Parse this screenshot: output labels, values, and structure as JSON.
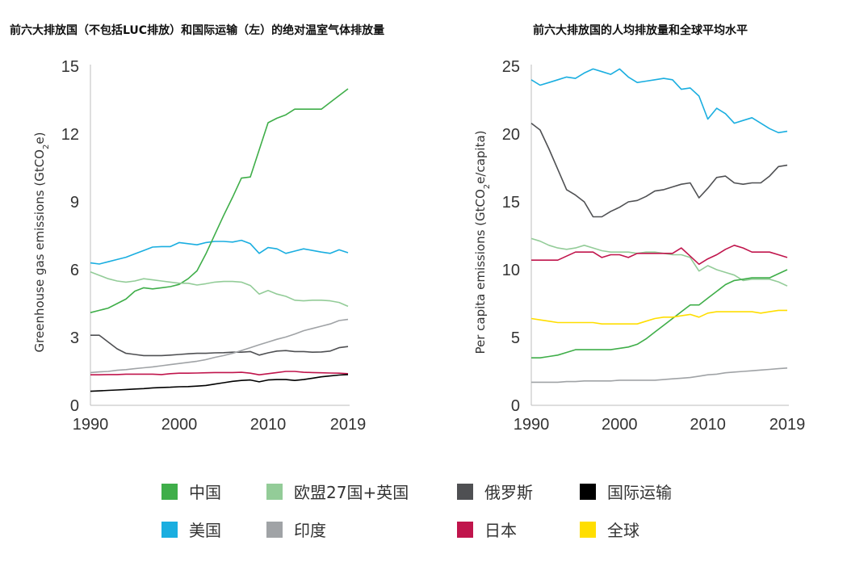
{
  "chart_data": [
    {
      "type": "line",
      "title": "前六大排放国（不包括LUC排放）和国际运输（左）的绝对温室气体排放量",
      "xlabel": "",
      "ylabel": "Greenhouse gas emissions (GtCO2e)",
      "ylim": [
        0,
        15
      ],
      "yticks": [
        "0",
        "3",
        "6",
        "9",
        "12",
        "15"
      ],
      "xlim": [
        1990,
        2019
      ],
      "xticks": [
        "1990",
        "2000",
        "2010",
        "2019"
      ],
      "series": [
        {
          "name": "美国",
          "color": "#1aaee0",
          "x": [
            1990,
            1991,
            1992,
            1993,
            1994,
            1995,
            1996,
            1997,
            1998,
            1999,
            2000,
            2001,
            2002,
            2003,
            2004,
            2005,
            2006,
            2007,
            2008,
            2009,
            2010,
            2011,
            2012,
            2013,
            2014,
            2015,
            2016,
            2017,
            2018,
            2019
          ],
          "y": [
            6.3,
            6.25,
            6.35,
            6.45,
            6.55,
            6.7,
            6.85,
            7.0,
            7.02,
            7.02,
            7.2,
            7.15,
            7.1,
            7.2,
            7.25,
            7.25,
            7.22,
            7.3,
            7.15,
            6.72,
            6.98,
            6.92,
            6.72,
            6.82,
            6.92,
            6.85,
            6.78,
            6.72,
            6.88,
            6.75
          ]
        },
        {
          "name": "中国",
          "color": "#3fae49",
          "x": [
            1990,
            1991,
            1992,
            1993,
            1994,
            1995,
            1996,
            1997,
            1998,
            1999,
            2000,
            2001,
            2002,
            2003,
            2004,
            2005,
            2006,
            2007,
            2008,
            2009,
            2010,
            2011,
            2012,
            2013,
            2014,
            2015,
            2016,
            2017,
            2018,
            2019
          ],
          "y": [
            4.1,
            4.2,
            4.3,
            4.5,
            4.7,
            5.05,
            5.2,
            5.15,
            5.2,
            5.25,
            5.35,
            5.6,
            5.95,
            6.7,
            7.55,
            8.4,
            9.2,
            10.05,
            10.1,
            11.3,
            12.5,
            12.7,
            12.85,
            13.1,
            13.1,
            13.1,
            13.1,
            13.4,
            13.7,
            14.0
          ]
        },
        {
          "name": "欧盟27国+英国",
          "color": "#93cc98",
          "x": [
            1990,
            1991,
            1992,
            1993,
            1994,
            1995,
            1996,
            1997,
            1998,
            1999,
            2000,
            2001,
            2002,
            2003,
            2004,
            2005,
            2006,
            2007,
            2008,
            2009,
            2010,
            2011,
            2012,
            2013,
            2014,
            2015,
            2016,
            2017,
            2018,
            2019
          ],
          "y": [
            5.9,
            5.75,
            5.6,
            5.5,
            5.45,
            5.5,
            5.6,
            5.55,
            5.5,
            5.45,
            5.4,
            5.4,
            5.32,
            5.38,
            5.45,
            5.48,
            5.48,
            5.45,
            5.3,
            4.92,
            5.08,
            4.92,
            4.82,
            4.65,
            4.62,
            4.65,
            4.65,
            4.62,
            4.55,
            4.38
          ]
        },
        {
          "name": "俄罗斯",
          "color": "#4f5053",
          "x": [
            1990,
            1991,
            1992,
            1993,
            1994,
            1995,
            1996,
            1997,
            1998,
            1999,
            2000,
            2001,
            2002,
            2003,
            2004,
            2005,
            2006,
            2007,
            2008,
            2009,
            2010,
            2011,
            2012,
            2013,
            2014,
            2015,
            2016,
            2017,
            2018,
            2019
          ],
          "y": [
            3.1,
            3.1,
            2.8,
            2.5,
            2.3,
            2.25,
            2.2,
            2.2,
            2.2,
            2.22,
            2.25,
            2.28,
            2.3,
            2.3,
            2.32,
            2.33,
            2.35,
            2.35,
            2.38,
            2.22,
            2.32,
            2.4,
            2.42,
            2.38,
            2.38,
            2.35,
            2.36,
            2.4,
            2.55,
            2.6
          ]
        },
        {
          "name": "印度",
          "color": "#a0a3a6",
          "x": [
            1990,
            1991,
            1992,
            1993,
            1994,
            1995,
            1996,
            1997,
            1998,
            1999,
            2000,
            2001,
            2002,
            2003,
            2004,
            2005,
            2006,
            2007,
            2008,
            2009,
            2010,
            2011,
            2012,
            2013,
            2014,
            2015,
            2016,
            2017,
            2018,
            2019
          ],
          "y": [
            1.45,
            1.48,
            1.5,
            1.55,
            1.58,
            1.62,
            1.66,
            1.7,
            1.75,
            1.8,
            1.85,
            1.9,
            1.95,
            2.02,
            2.12,
            2.2,
            2.3,
            2.42,
            2.55,
            2.68,
            2.8,
            2.92,
            3.02,
            3.15,
            3.3,
            3.4,
            3.5,
            3.6,
            3.75,
            3.8
          ]
        },
        {
          "name": "日本",
          "color": "#c0154c",
          "x": [
            1990,
            1991,
            1992,
            1993,
            1994,
            1995,
            1996,
            1997,
            1998,
            1999,
            2000,
            2001,
            2002,
            2003,
            2004,
            2005,
            2006,
            2007,
            2008,
            2009,
            2010,
            2011,
            2012,
            2013,
            2014,
            2015,
            2016,
            2017,
            2018,
            2019
          ],
          "y": [
            1.35,
            1.35,
            1.36,
            1.36,
            1.38,
            1.38,
            1.38,
            1.38,
            1.36,
            1.4,
            1.42,
            1.42,
            1.43,
            1.44,
            1.45,
            1.45,
            1.45,
            1.46,
            1.42,
            1.35,
            1.4,
            1.45,
            1.5,
            1.5,
            1.46,
            1.45,
            1.44,
            1.43,
            1.42,
            1.4
          ]
        },
        {
          "name": "国际运输",
          "color": "#000000",
          "x": [
            1990,
            1991,
            1992,
            1993,
            1994,
            1995,
            1996,
            1997,
            1998,
            1999,
            2000,
            2001,
            2002,
            2003,
            2004,
            2005,
            2006,
            2007,
            2008,
            2009,
            2010,
            2011,
            2012,
            2013,
            2014,
            2015,
            2016,
            2017,
            2018,
            2019
          ],
          "y": [
            0.62,
            0.64,
            0.66,
            0.68,
            0.7,
            0.72,
            0.74,
            0.77,
            0.79,
            0.8,
            0.82,
            0.83,
            0.85,
            0.88,
            0.94,
            1.0,
            1.06,
            1.1,
            1.12,
            1.04,
            1.12,
            1.14,
            1.14,
            1.1,
            1.14,
            1.2,
            1.26,
            1.3,
            1.34,
            1.36
          ]
        }
      ]
    },
    {
      "type": "line",
      "title": "前六大排放国的人均排放量和全球平均水平",
      "xlabel": "",
      "ylabel": "Per capita emissions (GtCO2e/capita)",
      "ylim": [
        0,
        25
      ],
      "yticks": [
        "0",
        "5",
        "10",
        "15",
        "20",
        "25"
      ],
      "xlim": [
        1990,
        2019
      ],
      "xticks": [
        "1990",
        "2000",
        "2010",
        "2019"
      ],
      "series": [
        {
          "name": "美国",
          "color": "#1aaee0",
          "x": [
            1990,
            1991,
            1992,
            1993,
            1994,
            1995,
            1996,
            1997,
            1998,
            1999,
            2000,
            2001,
            2002,
            2003,
            2004,
            2005,
            2006,
            2007,
            2008,
            2009,
            2010,
            2011,
            2012,
            2013,
            2014,
            2015,
            2016,
            2017,
            2018,
            2019
          ],
          "y": [
            24.0,
            23.6,
            23.8,
            24.0,
            24.2,
            24.1,
            24.5,
            24.8,
            24.6,
            24.4,
            24.8,
            24.2,
            23.8,
            23.9,
            24.0,
            24.1,
            24.0,
            23.3,
            23.4,
            22.8,
            21.1,
            21.9,
            21.5,
            20.8,
            21.0,
            21.2,
            20.8,
            20.4,
            20.1,
            20.2
          ]
        },
        {
          "name": "俄罗斯",
          "color": "#4f5053",
          "x": [
            1990,
            1991,
            1992,
            1993,
            1994,
            1995,
            1996,
            1997,
            1998,
            1999,
            2000,
            2001,
            2002,
            2003,
            2004,
            2005,
            2006,
            2007,
            2008,
            2009,
            2010,
            2011,
            2012,
            2013,
            2014,
            2015,
            2016,
            2017,
            2018,
            2019
          ],
          "y": [
            20.8,
            20.3,
            18.9,
            17.4,
            15.9,
            15.5,
            15.0,
            13.9,
            13.9,
            14.3,
            14.6,
            15.0,
            15.1,
            15.4,
            15.8,
            15.9,
            16.1,
            16.3,
            16.4,
            15.3,
            16.0,
            16.8,
            16.9,
            16.4,
            16.3,
            16.4,
            16.4,
            16.9,
            17.6,
            17.7
          ]
        },
        {
          "name": "欧盟27国+英国",
          "color": "#93cc98",
          "x": [
            1990,
            1991,
            1992,
            1993,
            1994,
            1995,
            1996,
            1997,
            1998,
            1999,
            2000,
            2001,
            2002,
            2003,
            2004,
            2005,
            2006,
            2007,
            2008,
            2009,
            2010,
            2011,
            2012,
            2013,
            2014,
            2015,
            2016,
            2017,
            2018,
            2019
          ],
          "y": [
            12.3,
            12.1,
            11.8,
            11.6,
            11.5,
            11.6,
            11.8,
            11.6,
            11.4,
            11.3,
            11.3,
            11.3,
            11.2,
            11.3,
            11.3,
            11.2,
            11.1,
            11.1,
            10.9,
            9.9,
            10.3,
            10.0,
            9.8,
            9.6,
            9.2,
            9.3,
            9.3,
            9.3,
            9.1,
            8.8
          ]
        },
        {
          "name": "日本",
          "color": "#c0154c",
          "x": [
            1990,
            1991,
            1992,
            1993,
            1994,
            1995,
            1996,
            1997,
            1998,
            1999,
            2000,
            2001,
            2002,
            2003,
            2004,
            2005,
            2006,
            2007,
            2008,
            2009,
            2010,
            2011,
            2012,
            2013,
            2014,
            2015,
            2016,
            2017,
            2018,
            2019
          ],
          "y": [
            10.7,
            10.7,
            10.7,
            10.7,
            11.0,
            11.3,
            11.3,
            11.3,
            10.9,
            11.1,
            11.1,
            10.9,
            11.2,
            11.2,
            11.2,
            11.2,
            11.2,
            11.6,
            11.0,
            10.4,
            10.8,
            11.1,
            11.5,
            11.8,
            11.6,
            11.3,
            11.3,
            11.3,
            11.1,
            10.9
          ]
        },
        {
          "name": "中国",
          "color": "#3fae49",
          "x": [
            1990,
            1991,
            1992,
            1993,
            1994,
            1995,
            1996,
            1997,
            1998,
            1999,
            2000,
            2001,
            2002,
            2003,
            2004,
            2005,
            2006,
            2007,
            2008,
            2009,
            2010,
            2011,
            2012,
            2013,
            2014,
            2015,
            2016,
            2017,
            2018,
            2019
          ],
          "y": [
            3.5,
            3.5,
            3.6,
            3.7,
            3.9,
            4.1,
            4.1,
            4.1,
            4.1,
            4.1,
            4.2,
            4.3,
            4.5,
            4.9,
            5.4,
            5.9,
            6.4,
            6.9,
            7.4,
            7.4,
            7.9,
            8.4,
            8.9,
            9.2,
            9.3,
            9.4,
            9.4,
            9.4,
            9.7,
            10.0
          ]
        },
        {
          "name": "全球",
          "color": "#ffde00",
          "x": [
            1990,
            1991,
            1992,
            1993,
            1994,
            1995,
            1996,
            1997,
            1998,
            1999,
            2000,
            2001,
            2002,
            2003,
            2004,
            2005,
            2006,
            2007,
            2008,
            2009,
            2010,
            2011,
            2012,
            2013,
            2014,
            2015,
            2016,
            2017,
            2018,
            2019
          ],
          "y": [
            6.4,
            6.3,
            6.2,
            6.1,
            6.1,
            6.1,
            6.1,
            6.1,
            6.0,
            6.0,
            6.0,
            6.0,
            6.0,
            6.2,
            6.4,
            6.5,
            6.5,
            6.6,
            6.7,
            6.5,
            6.8,
            6.9,
            6.9,
            6.9,
            6.9,
            6.9,
            6.8,
            6.9,
            7.0,
            7.0
          ]
        },
        {
          "name": "印度",
          "color": "#a0a3a6",
          "x": [
            1990,
            1991,
            1992,
            1993,
            1994,
            1995,
            1996,
            1997,
            1998,
            1999,
            2000,
            2001,
            2002,
            2003,
            2004,
            2005,
            2006,
            2007,
            2008,
            2009,
            2010,
            2011,
            2012,
            2013,
            2014,
            2015,
            2016,
            2017,
            2018,
            2019
          ],
          "y": [
            1.7,
            1.7,
            1.7,
            1.7,
            1.75,
            1.75,
            1.8,
            1.8,
            1.8,
            1.8,
            1.85,
            1.85,
            1.85,
            1.85,
            1.85,
            1.9,
            1.95,
            2.0,
            2.05,
            2.15,
            2.25,
            2.3,
            2.4,
            2.45,
            2.5,
            2.55,
            2.6,
            2.65,
            2.7,
            2.75
          ]
        }
      ]
    }
  ],
  "legend": [
    {
      "label": "中国",
      "color": "#3fae49"
    },
    {
      "label": "欧盟27国+英国",
      "color": "#93cc98"
    },
    {
      "label": "俄罗斯",
      "color": "#4f5053"
    },
    {
      "label": "国际运输",
      "color": "#000000"
    },
    {
      "label": "美国",
      "color": "#1aaee0"
    },
    {
      "label": "印度",
      "color": "#a0a3a6"
    },
    {
      "label": "日本",
      "color": "#c0154c"
    },
    {
      "label": "全球",
      "color": "#ffde00"
    }
  ]
}
